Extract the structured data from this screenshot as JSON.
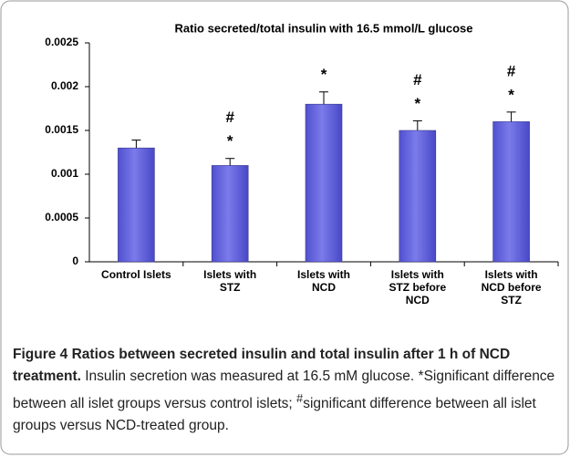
{
  "chart_data": {
    "type": "bar",
    "title": "Ratio secreted/total insulin with 16.5 mmol/L glucose",
    "categories": [
      "Control Islets",
      "Islets with STZ",
      "Islets with NCD",
      "Islets with STZ before NCD",
      "Islets with NCD before STZ"
    ],
    "values": [
      0.0013,
      0.0011,
      0.0018,
      0.0015,
      0.0016
    ],
    "errors": [
      9e-05,
      8e-05,
      0.00014,
      0.00011,
      0.00011
    ],
    "color": "#7b7bea",
    "ylim": [
      0,
      0.0025
    ],
    "yticks": [
      0,
      0.0005,
      0.001,
      0.0015,
      0.002,
      0.0025
    ],
    "grid": false,
    "annotations": [
      {
        "category": "Islets with STZ",
        "texts": [
          "*",
          "#"
        ]
      },
      {
        "category": "Islets with NCD",
        "texts": [
          "*"
        ]
      },
      {
        "category": "Islets with STZ before NCD",
        "texts": [
          "*",
          "#"
        ]
      },
      {
        "category": "Islets with NCD before STZ",
        "texts": [
          "*",
          "#"
        ]
      }
    ]
  },
  "caption": {
    "title": "Figure 4 Ratios between secreted insulin and total insulin after 1 h of NCD treatment.",
    "text_before": "Insulin secretion was measured at 16.5 mM glucose. *Significant difference between all islet groups versus control islets; ",
    "superscript": "#",
    "text_after": "significant difference between all islet groups versus NCD-treated group."
  }
}
